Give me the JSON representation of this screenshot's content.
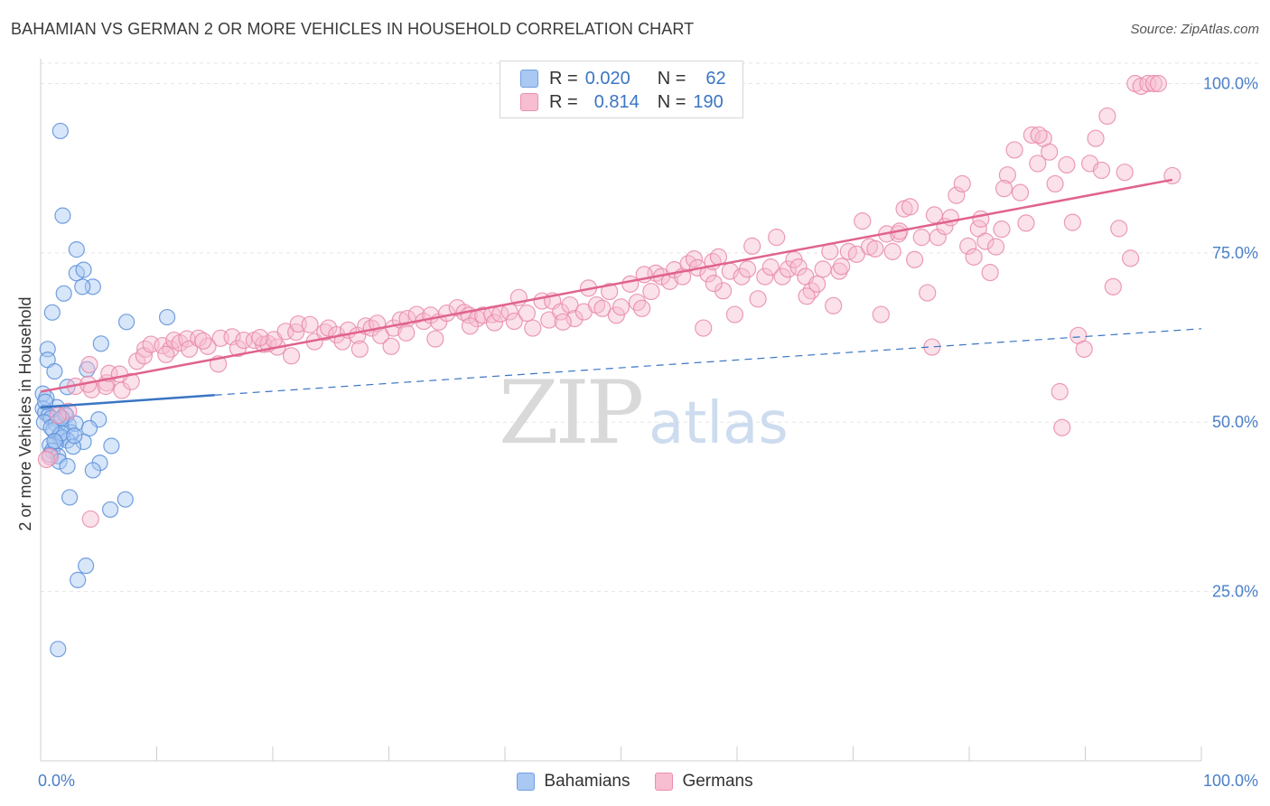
{
  "header": {
    "title": "BAHAMIAN VS GERMAN 2 OR MORE VEHICLES IN HOUSEHOLD CORRELATION CHART",
    "source": "Source: ZipAtlas.com"
  },
  "watermark": {
    "zip": "ZIP",
    "atlas": "atlas"
  },
  "legend_top": {
    "rows": [
      {
        "r_label": "R =",
        "r_value": "0.020",
        "n_label": "N =",
        "n_value": "62",
        "color": "#a9c8f2",
        "border": "#6f9fe0"
      },
      {
        "r_label": "R =",
        "r_value": "0.814",
        "n_label": "N =",
        "n_value": "190",
        "color": "#f7bdd1",
        "border": "#ea8fb0"
      }
    ]
  },
  "legend_bottom": {
    "items": [
      {
        "label": "Bahamians",
        "color": "#a9c8f2",
        "border": "#6f9fe0"
      },
      {
        "label": "Germans",
        "color": "#f7bdd1",
        "border": "#ea8fb0"
      }
    ]
  },
  "colors": {
    "bahamian_fill": "#a9c8f2",
    "bahamian_stroke": "#5b8fd9",
    "bahamian_line": "#3a75c4",
    "german_fill": "#f7bdd1",
    "german_stroke": "#e88aac",
    "german_line": "#e0638d",
    "grid": "#e5e5e5",
    "tick_label": "#4a7fc8"
  },
  "chart_data": {
    "type": "scatter",
    "title": "BAHAMIAN VS GERMAN 2 OR MORE VEHICLES IN HOUSEHOLD CORRELATION CHART",
    "xlabel": "",
    "ylabel": "2 or more Vehicles in Household",
    "xlim": [
      0,
      100
    ],
    "ylim": [
      0,
      103
    ],
    "x_tick_labels": [
      "0.0%",
      "100.0%"
    ],
    "y_ticks": [
      25,
      50,
      75,
      100
    ],
    "y_tick_labels": [
      "25.0%",
      "50.0%",
      "75.0%",
      "100.0%"
    ],
    "grid": true,
    "legend_position": "top-center",
    "series": [
      {
        "name": "Bahamians",
        "r": 0.02,
        "n": 62,
        "trend_solid": {
          "x": [
            0,
            15
          ],
          "y": [
            52.2,
            54.0
          ]
        },
        "trend_dashed": {
          "x": [
            15,
            100
          ],
          "y": [
            54.0,
            63.8
          ]
        },
        "points": [
          [
            1.7,
            93.0
          ],
          [
            1.9,
            80.5
          ],
          [
            3.1,
            75.5
          ],
          [
            3.1,
            72.0
          ],
          [
            3.7,
            72.5
          ],
          [
            4.5,
            70.0
          ],
          [
            3.6,
            70.0
          ],
          [
            2.0,
            69.0
          ],
          [
            1.0,
            66.2
          ],
          [
            7.4,
            64.8
          ],
          [
            10.9,
            65.5
          ],
          [
            5.2,
            61.6
          ],
          [
            0.6,
            60.8
          ],
          [
            0.6,
            59.2
          ],
          [
            1.2,
            57.5
          ],
          [
            4.0,
            57.8
          ],
          [
            2.3,
            55.2
          ],
          [
            0.2,
            54.2
          ],
          [
            0.5,
            53.6
          ],
          [
            1.4,
            52.2
          ],
          [
            0.2,
            52.0
          ],
          [
            0.4,
            51.4
          ],
          [
            0.7,
            51.0
          ],
          [
            2.1,
            51.2
          ],
          [
            0.9,
            50.6
          ],
          [
            1.6,
            50.3
          ],
          [
            5.0,
            50.4
          ],
          [
            0.3,
            50.0
          ],
          [
            1.3,
            49.8
          ],
          [
            2.4,
            49.6
          ],
          [
            4.2,
            49.1
          ],
          [
            1.1,
            48.8
          ],
          [
            2.6,
            48.5
          ],
          [
            1.6,
            48.0
          ],
          [
            1.9,
            47.7
          ],
          [
            2.3,
            47.3
          ],
          [
            3.7,
            47.1
          ],
          [
            1.3,
            46.8
          ],
          [
            6.1,
            46.5
          ],
          [
            0.8,
            46.6
          ],
          [
            2.8,
            46.4
          ],
          [
            1.0,
            45.8
          ],
          [
            1.5,
            45.0
          ],
          [
            0.8,
            45.2
          ],
          [
            1.6,
            44.2
          ],
          [
            5.1,
            44.0
          ],
          [
            2.3,
            43.5
          ],
          [
            4.5,
            42.9
          ],
          [
            2.5,
            38.9
          ],
          [
            7.3,
            38.6
          ],
          [
            6.0,
            37.1
          ],
          [
            3.9,
            28.8
          ],
          [
            3.2,
            26.7
          ],
          [
            1.5,
            16.5
          ],
          [
            0.4,
            53.0
          ],
          [
            1.8,
            48.4
          ],
          [
            2.2,
            51.0
          ],
          [
            0.9,
            49.2
          ],
          [
            1.2,
            47.2
          ],
          [
            3.0,
            49.8
          ],
          [
            2.9,
            48.0
          ],
          [
            1.8,
            50.6
          ]
        ]
      },
      {
        "name": "Germans",
        "r": 0.814,
        "n": 190,
        "trend_solid": {
          "x": [
            0,
            97.5
          ],
          "y": [
            54.5,
            85.8
          ]
        },
        "points": [
          [
            0.8,
            44.9
          ],
          [
            2.4,
            51.6
          ],
          [
            3.0,
            55.3
          ],
          [
            4.4,
            54.8
          ],
          [
            4.1,
            55.6
          ],
          [
            4.2,
            58.5
          ],
          [
            5.7,
            55.8
          ],
          [
            5.6,
            55.3
          ],
          [
            5.9,
            57.2
          ],
          [
            7.0,
            54.7
          ],
          [
            7.8,
            56.0
          ],
          [
            8.3,
            59.0
          ],
          [
            9.0,
            60.8
          ],
          [
            8.9,
            59.8
          ],
          [
            9.5,
            61.5
          ],
          [
            10.5,
            61.3
          ],
          [
            11.2,
            60.8
          ],
          [
            11.5,
            62.1
          ],
          [
            12.0,
            61.7
          ],
          [
            12.6,
            62.3
          ],
          [
            12.8,
            60.8
          ],
          [
            13.6,
            62.4
          ],
          [
            14.4,
            61.2
          ],
          [
            15.5,
            62.4
          ],
          [
            15.3,
            58.6
          ],
          [
            16.5,
            62.6
          ],
          [
            17.0,
            60.9
          ],
          [
            17.5,
            62.1
          ],
          [
            18.4,
            62.1
          ],
          [
            19.2,
            61.5
          ],
          [
            19.6,
            61.6
          ],
          [
            20.4,
            61.1
          ],
          [
            20.1,
            62.2
          ],
          [
            21.1,
            63.4
          ],
          [
            21.6,
            59.8
          ],
          [
            22.0,
            63.3
          ],
          [
            22.2,
            64.5
          ],
          [
            23.2,
            64.4
          ],
          [
            23.6,
            61.9
          ],
          [
            24.5,
            63.3
          ],
          [
            24.8,
            63.9
          ],
          [
            25.5,
            62.9
          ],
          [
            26.0,
            61.9
          ],
          [
            26.5,
            63.6
          ],
          [
            27.3,
            62.8
          ],
          [
            28.0,
            64.2
          ],
          [
            28.5,
            63.9
          ],
          [
            29.0,
            64.6
          ],
          [
            29.3,
            62.8
          ],
          [
            30.2,
            61.2
          ],
          [
            30.4,
            63.9
          ],
          [
            31.0,
            65.1
          ],
          [
            31.6,
            65.3
          ],
          [
            32.4,
            65.9
          ],
          [
            33.0,
            64.9
          ],
          [
            33.6,
            65.8
          ],
          [
            34.0,
            62.3
          ],
          [
            34.3,
            64.8
          ],
          [
            35.0,
            66.1
          ],
          [
            35.9,
            66.9
          ],
          [
            36.5,
            66.2
          ],
          [
            36.9,
            65.8
          ],
          [
            37.6,
            65.3
          ],
          [
            38.1,
            65.8
          ],
          [
            38.9,
            65.9
          ],
          [
            39.1,
            64.7
          ],
          [
            39.6,
            66.0
          ],
          [
            40.4,
            66.3
          ],
          [
            40.8,
            64.9
          ],
          [
            41.2,
            68.4
          ],
          [
            41.9,
            66.1
          ],
          [
            42.4,
            63.9
          ],
          [
            43.2,
            67.9
          ],
          [
            43.8,
            65.1
          ],
          [
            44.1,
            67.9
          ],
          [
            44.8,
            66.3
          ],
          [
            45.6,
            67.3
          ],
          [
            46.0,
            65.3
          ],
          [
            46.8,
            66.3
          ],
          [
            47.2,
            69.8
          ],
          [
            47.9,
            67.3
          ],
          [
            48.4,
            66.8
          ],
          [
            49.0,
            69.3
          ],
          [
            49.6,
            65.8
          ],
          [
            50.0,
            67.0
          ],
          [
            50.8,
            70.4
          ],
          [
            51.4,
            67.7
          ],
          [
            51.8,
            66.8
          ],
          [
            52.6,
            69.3
          ],
          [
            53.0,
            72.0
          ],
          [
            53.5,
            71.5
          ],
          [
            54.2,
            70.8
          ],
          [
            54.6,
            72.5
          ],
          [
            55.3,
            71.5
          ],
          [
            55.8,
            73.4
          ],
          [
            56.3,
            74.1
          ],
          [
            56.6,
            72.8
          ],
          [
            57.1,
            63.9
          ],
          [
            57.5,
            71.9
          ],
          [
            57.9,
            73.7
          ],
          [
            58.4,
            74.4
          ],
          [
            58.8,
            69.4
          ],
          [
            59.4,
            72.3
          ],
          [
            59.8,
            65.9
          ],
          [
            60.4,
            71.5
          ],
          [
            60.9,
            72.6
          ],
          [
            61.3,
            76.0
          ],
          [
            61.8,
            68.2
          ],
          [
            62.4,
            71.5
          ],
          [
            62.9,
            72.9
          ],
          [
            63.4,
            77.3
          ],
          [
            63.9,
            71.5
          ],
          [
            64.4,
            72.6
          ],
          [
            64.9,
            74.0
          ],
          [
            65.3,
            72.9
          ],
          [
            65.9,
            71.5
          ],
          [
            66.4,
            69.4
          ],
          [
            66.9,
            70.4
          ],
          [
            67.4,
            72.6
          ],
          [
            68.0,
            75.2
          ],
          [
            68.3,
            67.2
          ],
          [
            68.8,
            72.3
          ],
          [
            69.6,
            75.2
          ],
          [
            70.3,
            74.8
          ],
          [
            70.8,
            79.7
          ],
          [
            71.4,
            75.9
          ],
          [
            71.9,
            75.6
          ],
          [
            72.4,
            65.9
          ],
          [
            72.9,
            77.8
          ],
          [
            73.4,
            75.2
          ],
          [
            73.9,
            77.8
          ],
          [
            74.4,
            81.5
          ],
          [
            74.9,
            81.8
          ],
          [
            75.3,
            74.0
          ],
          [
            75.9,
            77.3
          ],
          [
            76.4,
            69.1
          ],
          [
            76.8,
            61.1
          ],
          [
            77.3,
            77.3
          ],
          [
            77.9,
            78.9
          ],
          [
            78.4,
            80.2
          ],
          [
            78.9,
            83.5
          ],
          [
            79.4,
            85.2
          ],
          [
            79.9,
            76.0
          ],
          [
            80.4,
            74.4
          ],
          [
            80.8,
            78.6
          ],
          [
            81.4,
            76.7
          ],
          [
            81.8,
            72.1
          ],
          [
            82.3,
            75.9
          ],
          [
            82.8,
            78.5
          ],
          [
            83.3,
            86.5
          ],
          [
            83.9,
            90.2
          ],
          [
            84.4,
            83.9
          ],
          [
            84.9,
            79.4
          ],
          [
            85.4,
            92.4
          ],
          [
            85.9,
            88.2
          ],
          [
            86.4,
            91.9
          ],
          [
            86.9,
            89.9
          ],
          [
            87.4,
            85.2
          ],
          [
            87.8,
            54.5
          ],
          [
            88.4,
            88.0
          ],
          [
            88.9,
            79.5
          ],
          [
            89.4,
            62.8
          ],
          [
            89.9,
            60.8
          ],
          [
            90.4,
            88.2
          ],
          [
            90.9,
            91.9
          ],
          [
            91.4,
            87.2
          ],
          [
            91.9,
            95.2
          ],
          [
            92.4,
            70.0
          ],
          [
            92.9,
            78.6
          ],
          [
            93.4,
            86.9
          ],
          [
            93.9,
            74.2
          ],
          [
            94.3,
            100.0
          ],
          [
            94.8,
            99.6
          ],
          [
            95.4,
            100.0
          ],
          [
            95.9,
            100.0
          ],
          [
            96.3,
            100.0
          ],
          [
            97.5,
            86.4
          ],
          [
            31.5,
            63.2
          ],
          [
            37.0,
            64.2
          ],
          [
            45.0,
            64.8
          ],
          [
            52.0,
            71.8
          ],
          [
            58.0,
            70.5
          ],
          [
            66.0,
            68.6
          ],
          [
            69.0,
            73.0
          ],
          [
            74.0,
            78.2
          ],
          [
            77.0,
            80.6
          ],
          [
            81.0,
            80.0
          ],
          [
            83.0,
            84.5
          ],
          [
            86.0,
            92.4
          ],
          [
            88.0,
            49.2
          ],
          [
            4.3,
            35.7
          ],
          [
            0.5,
            44.5
          ],
          [
            1.5,
            51.0
          ],
          [
            6.8,
            57.1
          ],
          [
            10.8,
            60.0
          ],
          [
            14.0,
            62.0
          ],
          [
            18.9,
            62.5
          ],
          [
            27.5,
            60.8
          ]
        ]
      }
    ]
  }
}
